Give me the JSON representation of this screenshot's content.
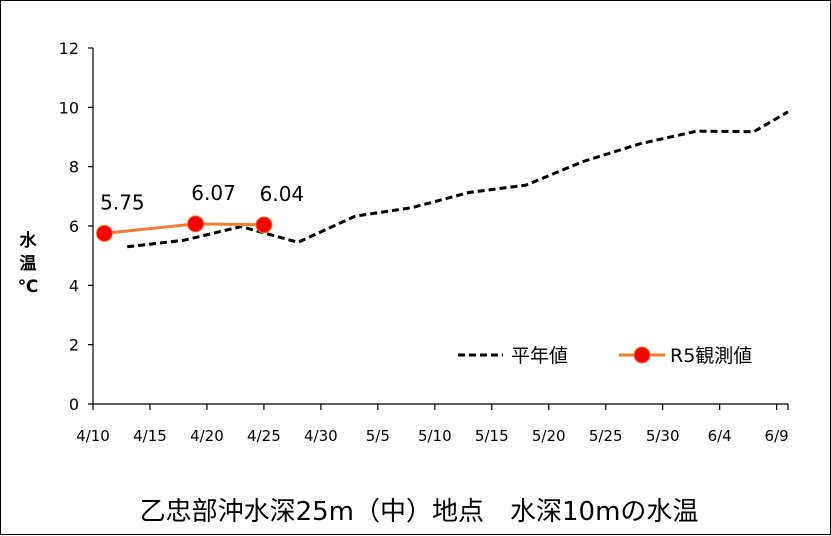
{
  "chart_data": {
    "type": "line",
    "title": "乙忠部沖水深25m（中）地点　水深10mの水温",
    "xlabel": "",
    "ylabel": [
      "水",
      "温",
      "℃"
    ],
    "ylim": [
      0,
      12
    ],
    "yticks": [
      0,
      2,
      4,
      6,
      8,
      10,
      12
    ],
    "x_tick_labels": [
      "4/10",
      "4/15",
      "4/20",
      "4/25",
      "4/30",
      "5/5",
      "5/10",
      "5/15",
      "5/20",
      "5/25",
      "5/30",
      "6/4",
      "6/9"
    ],
    "x_tick_dates": [
      "04-10",
      "04-15",
      "04-20",
      "04-25",
      "04-30",
      "05-05",
      "05-10",
      "05-15",
      "05-20",
      "05-25",
      "05-30",
      "06-04",
      "06-09"
    ],
    "xlim": [
      "04-10",
      "06-10"
    ],
    "legend_position": "bottom-right",
    "series": [
      {
        "name": "平年値",
        "style": "dashed",
        "color": "#000000",
        "points": [
          {
            "x": "04-13",
            "y": 5.3
          },
          {
            "x": "04-18",
            "y": 5.52
          },
          {
            "x": "04-23",
            "y": 5.98
          },
          {
            "x": "04-28",
            "y": 5.45
          },
          {
            "x": "05-03",
            "y": 6.33
          },
          {
            "x": "05-08",
            "y": 6.62
          },
          {
            "x": "05-13",
            "y": 7.13
          },
          {
            "x": "05-18",
            "y": 7.38
          },
          {
            "x": "05-23",
            "y": 8.17
          },
          {
            "x": "05-28",
            "y": 8.77
          },
          {
            "x": "06-02",
            "y": 9.2
          },
          {
            "x": "06-07",
            "y": 9.18
          },
          {
            "x": "06-10",
            "y": 9.85
          }
        ]
      },
      {
        "name": "R5観測値",
        "style": "solid-markers",
        "color": "#ed7d31",
        "marker_color": "#ff0000",
        "points": [
          {
            "x": "04-11",
            "y": 5.75,
            "label": "5.75"
          },
          {
            "x": "04-19",
            "y": 6.07,
            "label": "6.07"
          },
          {
            "x": "04-25",
            "y": 6.04,
            "label": "6.04"
          }
        ]
      }
    ]
  }
}
